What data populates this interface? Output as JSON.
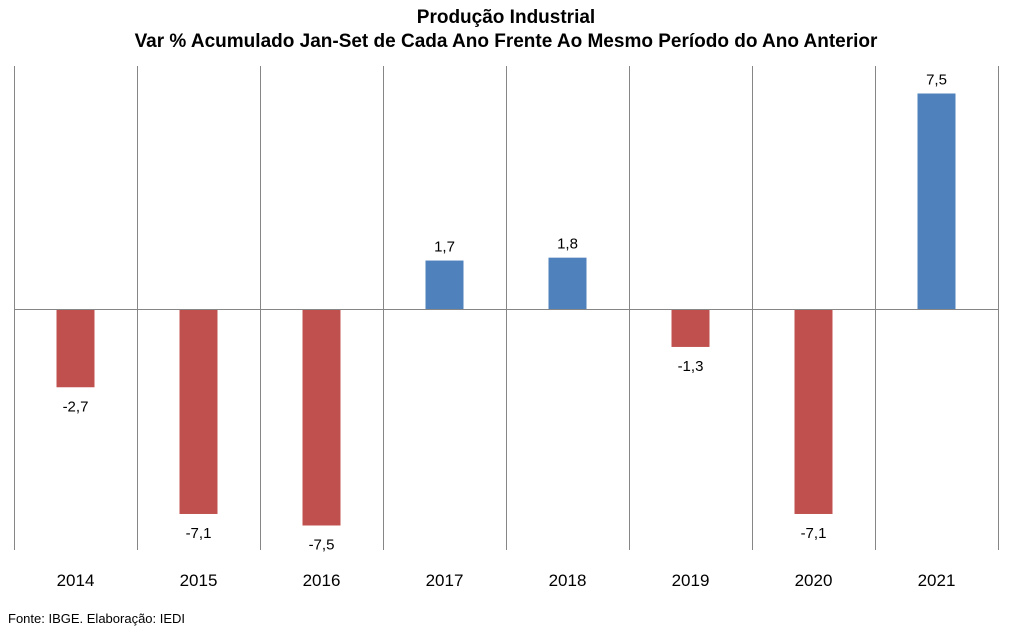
{
  "source_note": "Fonte: IBGE. Elaboração: IEDI",
  "colors": {
    "positive": "#4f81bd",
    "negative": "#c0504d",
    "axis": "#868686",
    "grid": "#868686"
  },
  "chart_data": {
    "type": "bar",
    "title": "Produção Industrial",
    "subtitle": "Var % Acumulado Jan-Set de Cada Ano Frente Ao Mesmo Período do Ano Anterior",
    "categories": [
      "2014",
      "2015",
      "2016",
      "2017",
      "2018",
      "2019",
      "2020",
      "2021"
    ],
    "values": [
      -2.7,
      -7.1,
      -7.5,
      1.7,
      1.8,
      -1.3,
      -7.1,
      7.5
    ],
    "data_labels": [
      "-2,7",
      "-7,1",
      "-7,5",
      "1,7",
      "1,8",
      "-1,3",
      "-7,1",
      "7,5"
    ],
    "ylim": [
      -8.5,
      8.5
    ],
    "grid": "vertical category separators",
    "legend": "none"
  }
}
